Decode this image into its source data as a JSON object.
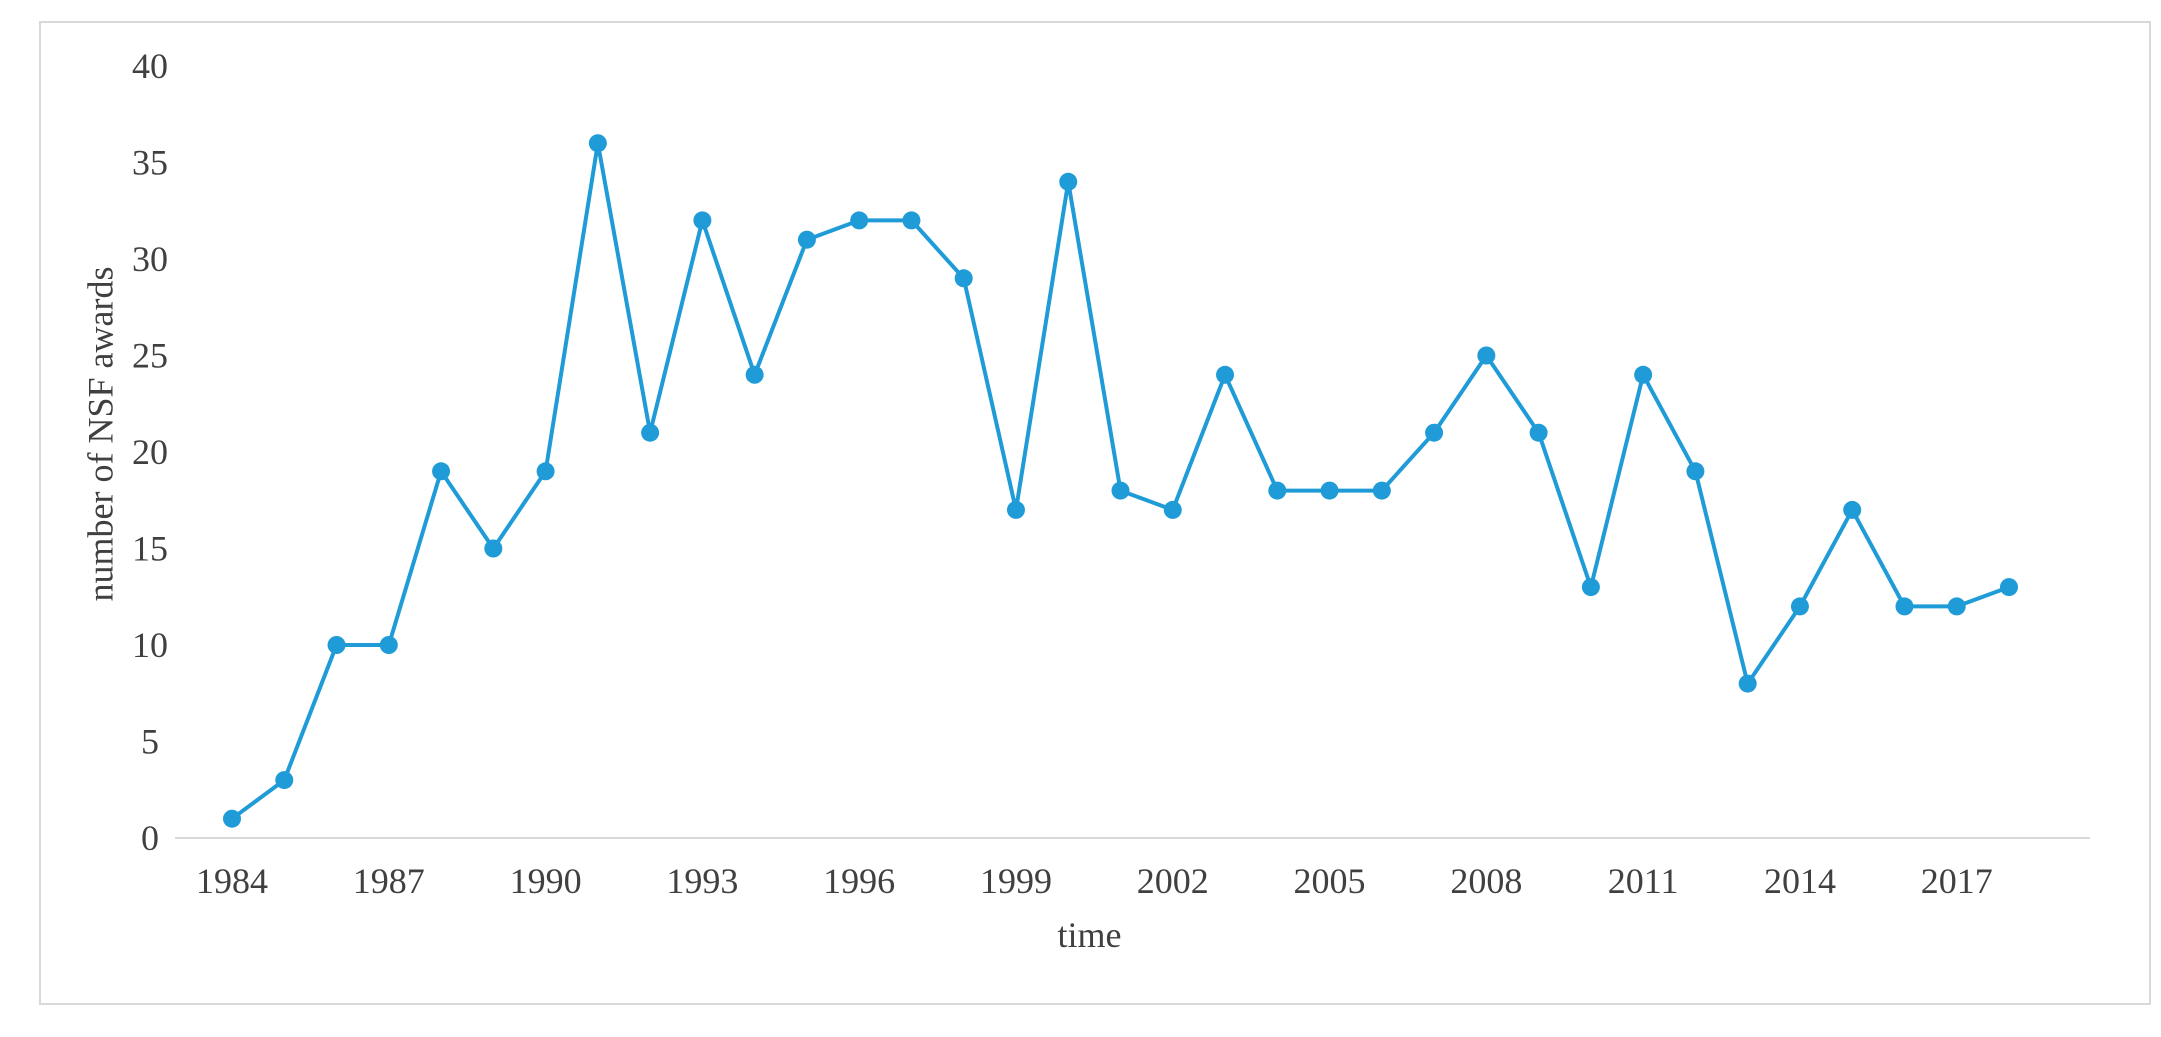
{
  "chart_data": {
    "type": "line",
    "title": "",
    "xlabel": "time",
    "ylabel": "number of NSF awards",
    "x": [
      1984,
      1985,
      1986,
      1987,
      1988,
      1989,
      1990,
      1991,
      1992,
      1993,
      1994,
      1995,
      1996,
      1997,
      1998,
      1999,
      2000,
      2001,
      2002,
      2003,
      2004,
      2005,
      2006,
      2007,
      2008,
      2009,
      2010,
      2011,
      2012,
      2013,
      2014,
      2015,
      2016,
      2017,
      2018
    ],
    "series": [
      {
        "values": [
          1,
          3,
          10,
          10,
          19,
          15,
          19,
          36,
          21,
          32,
          24,
          31,
          32,
          32,
          29,
          17,
          34,
          18,
          17,
          24,
          18,
          18,
          18,
          21,
          25,
          21,
          13,
          24,
          19,
          8,
          12,
          17,
          12,
          12,
          13
        ]
      }
    ],
    "x_tick_labels": [
      "1984",
      "1987",
      "1990",
      "1993",
      "1996",
      "1999",
      "2002",
      "2005",
      "2008",
      "2011",
      "2014",
      "2017"
    ],
    "x_tick_values": [
      1984,
      1987,
      1990,
      1993,
      1996,
      1999,
      2002,
      2005,
      2008,
      2011,
      2014,
      2017
    ],
    "y_tick_labels": [
      "0",
      "5",
      "10",
      "15",
      "20",
      "25",
      "30",
      "35",
      "40"
    ],
    "y_tick_values": [
      0,
      5,
      10,
      15,
      20,
      25,
      30,
      35,
      40
    ],
    "ylim": [
      0,
      40
    ],
    "xlim": [
      1984,
      2018
    ],
    "grid": false,
    "legend": "none",
    "colors": {
      "line": "#1f9bd7",
      "axis": "#d9d9d9",
      "border": "#d9d9d9",
      "text": "#404040"
    }
  }
}
